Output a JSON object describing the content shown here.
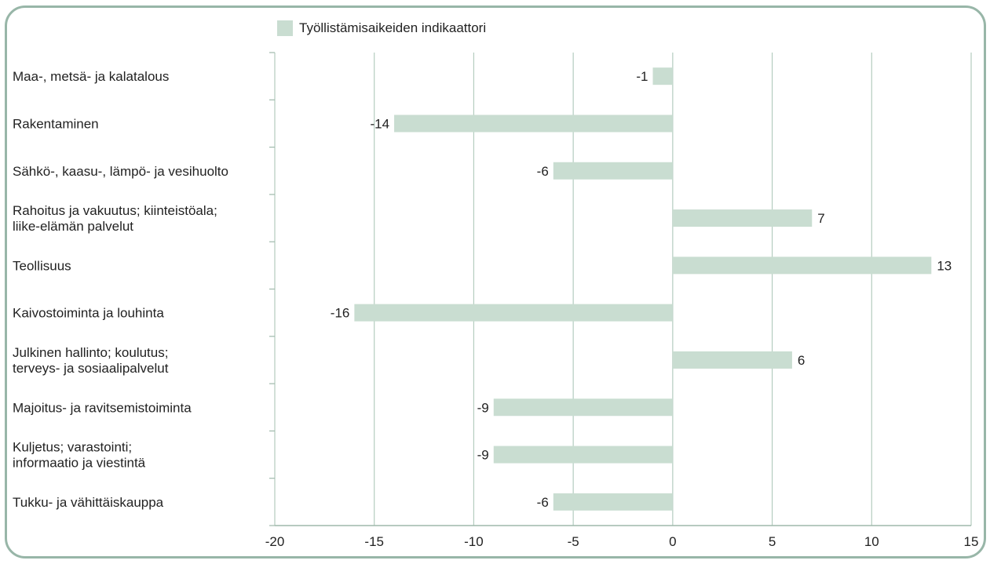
{
  "chart_data": {
    "type": "bar",
    "orientation": "horizontal",
    "categories": [
      [
        "Maa-, metsä- ja kalatalous"
      ],
      [
        "Rakentaminen"
      ],
      [
        "Sähkö-, kaasu-, lämpö- ja vesihuolto"
      ],
      [
        "Rahoitus ja vakuutus; kiinteistöala;",
        "liike-elämän palvelut"
      ],
      [
        "Teollisuus"
      ],
      [
        "Kaivostoiminta ja louhinta"
      ],
      [
        "Julkinen hallinto; koulutus;",
        "terveys- ja sosiaalipalvelut"
      ],
      [
        "Majoitus- ja ravitsemistoiminta"
      ],
      [
        "Kuljetus; varastointi;",
        "informaatio ja viestintä"
      ],
      [
        "Tukku- ja vähittäiskauppa"
      ]
    ],
    "series": [
      {
        "name": "Työllistämisaikeiden indikaattori",
        "values": [
          -1,
          -14,
          -6,
          7,
          13,
          -16,
          6,
          -9,
          -9,
          -6
        ],
        "labels": [
          "-1",
          "-14",
          "-6",
          "7",
          "13",
          "-16",
          "6",
          "-9",
          "-9",
          "-6"
        ]
      }
    ],
    "xlim": [
      -20,
      15
    ],
    "x_ticks": [
      -20,
      -15,
      -10,
      -5,
      0,
      5,
      10,
      15
    ],
    "x_tick_labels": [
      "-20",
      "-15",
      "-10",
      "-5",
      "0",
      "5",
      "10",
      "15"
    ],
    "grid": "vertical",
    "legend": "top-left",
    "colors": {
      "bar": "#c9ddd1",
      "grid": "#b4ccbf",
      "axis": "#9fb9ab",
      "frame": "#98b6a8",
      "text": "#222222"
    }
  }
}
